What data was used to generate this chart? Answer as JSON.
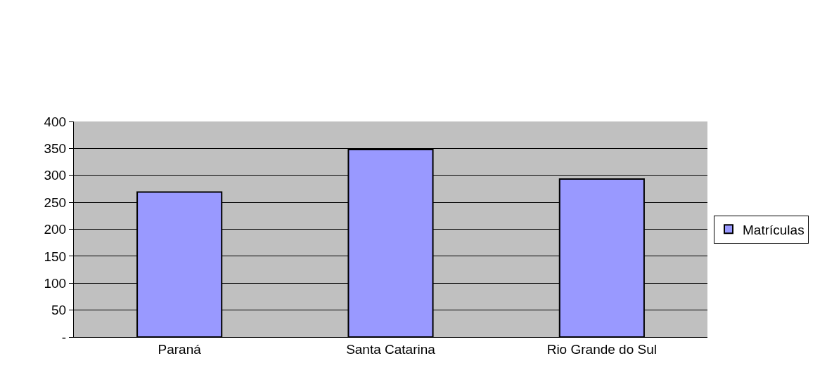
{
  "chart_data": {
    "type": "bar",
    "categories": [
      "Paraná",
      "Santa Catarina",
      "Rio Grande do Sul"
    ],
    "series": [
      {
        "name": "Matrículas",
        "color": "#9999ff",
        "values": [
          269,
          348,
          293
        ]
      }
    ],
    "ylim": [
      0,
      400
    ],
    "yticks": [
      {
        "value": 0,
        "label": "-"
      },
      50,
      100,
      150,
      200,
      250,
      300,
      350,
      400
    ],
    "grid": "y",
    "legend": "right"
  }
}
